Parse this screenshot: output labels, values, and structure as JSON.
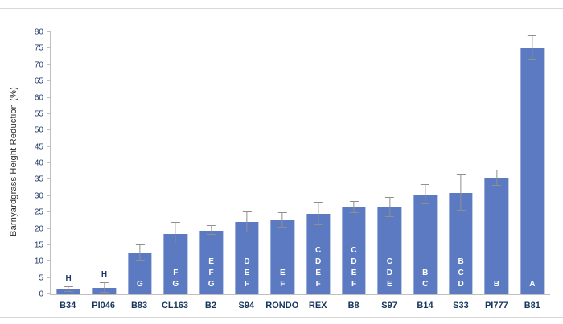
{
  "chart_data": {
    "type": "bar",
    "title": "",
    "xlabel": "",
    "ylabel": "Barnyardgrass Height Reduction (%)",
    "ylim": [
      0,
      80
    ],
    "ytick_step": 5,
    "grid": false,
    "legend": false,
    "categories": [
      "B34",
      "PI046",
      "B83",
      "CL163",
      "B2",
      "S94",
      "RONDO",
      "REX",
      "B8",
      "S97",
      "B14",
      "S33",
      "PI777",
      "B81"
    ],
    "values": [
      1.5,
      2,
      12.5,
      18.5,
      19.5,
      22,
      22.5,
      24.5,
      26.5,
      26.5,
      30.5,
      31,
      35.5,
      75
    ],
    "errors": [
      0.8,
      1.4,
      2.5,
      3.3,
      1.4,
      3,
      2.2,
      3.4,
      1.8,
      3,
      3,
      5.4,
      2.4,
      3.7
    ],
    "significance_letters": [
      "H",
      "H",
      "G",
      "FG",
      "EFG",
      "DEF",
      "EF",
      "CDEF",
      "CDEF",
      "CDE",
      "BC",
      "BCD",
      "B",
      "A"
    ],
    "letters_above_bar": [
      true,
      true,
      false,
      false,
      false,
      false,
      false,
      false,
      false,
      false,
      false,
      false,
      false,
      false
    ],
    "bar_color": "#5b7ac1",
    "error_bar_color": "#8f8f8f",
    "axis_color": "#bfbfbf",
    "y_tick_label_color": "#1f3a68",
    "x_tick_label_color": "#17365d"
  }
}
